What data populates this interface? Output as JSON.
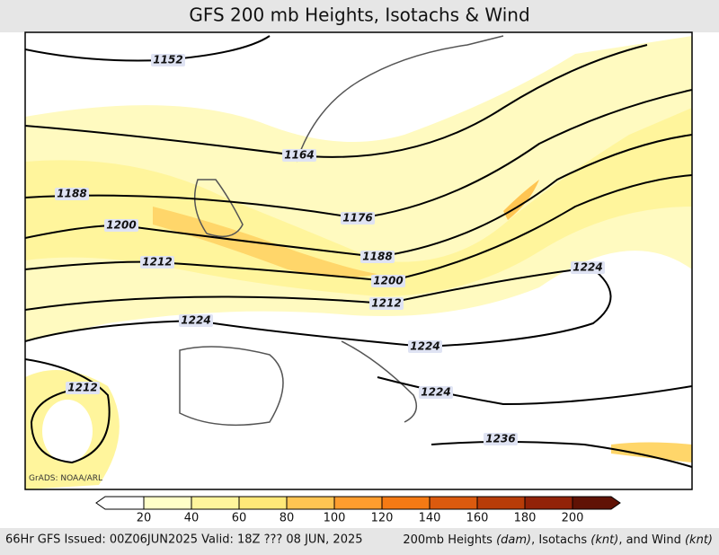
{
  "header": {
    "title": "GFS 200 mb Heights, Isotachs & Wind"
  },
  "map": {
    "credit": "GrADS: NOAA/ARL",
    "contour_labels": [
      "1152",
      "1164",
      "1188",
      "1176",
      "1200",
      "1188",
      "1212",
      "1200",
      "1212",
      "1224",
      "1224",
      "1224",
      "1212",
      "1224",
      "1236"
    ]
  },
  "colorbar": {
    "ticks": [
      "20",
      "40",
      "60",
      "80",
      "100",
      "120",
      "140",
      "160",
      "180",
      "200"
    ],
    "colors": [
      "#ffffff",
      "#ffffc8",
      "#fff59c",
      "#ffe978",
      "#ffc552",
      "#ff9d2e",
      "#f57a14",
      "#dc5a0e",
      "#b83c08",
      "#922208",
      "#601205"
    ]
  },
  "footer": {
    "left": "66Hr GFS Issued: 00Z06JUN2025 Valid: 18Z ??? 08 JUN, 2025",
    "right": [
      "200mb Heights ",
      "(dam)",
      ", Isotachs ",
      "(knt)",
      ", and Wind ",
      "(knt)"
    ]
  }
}
